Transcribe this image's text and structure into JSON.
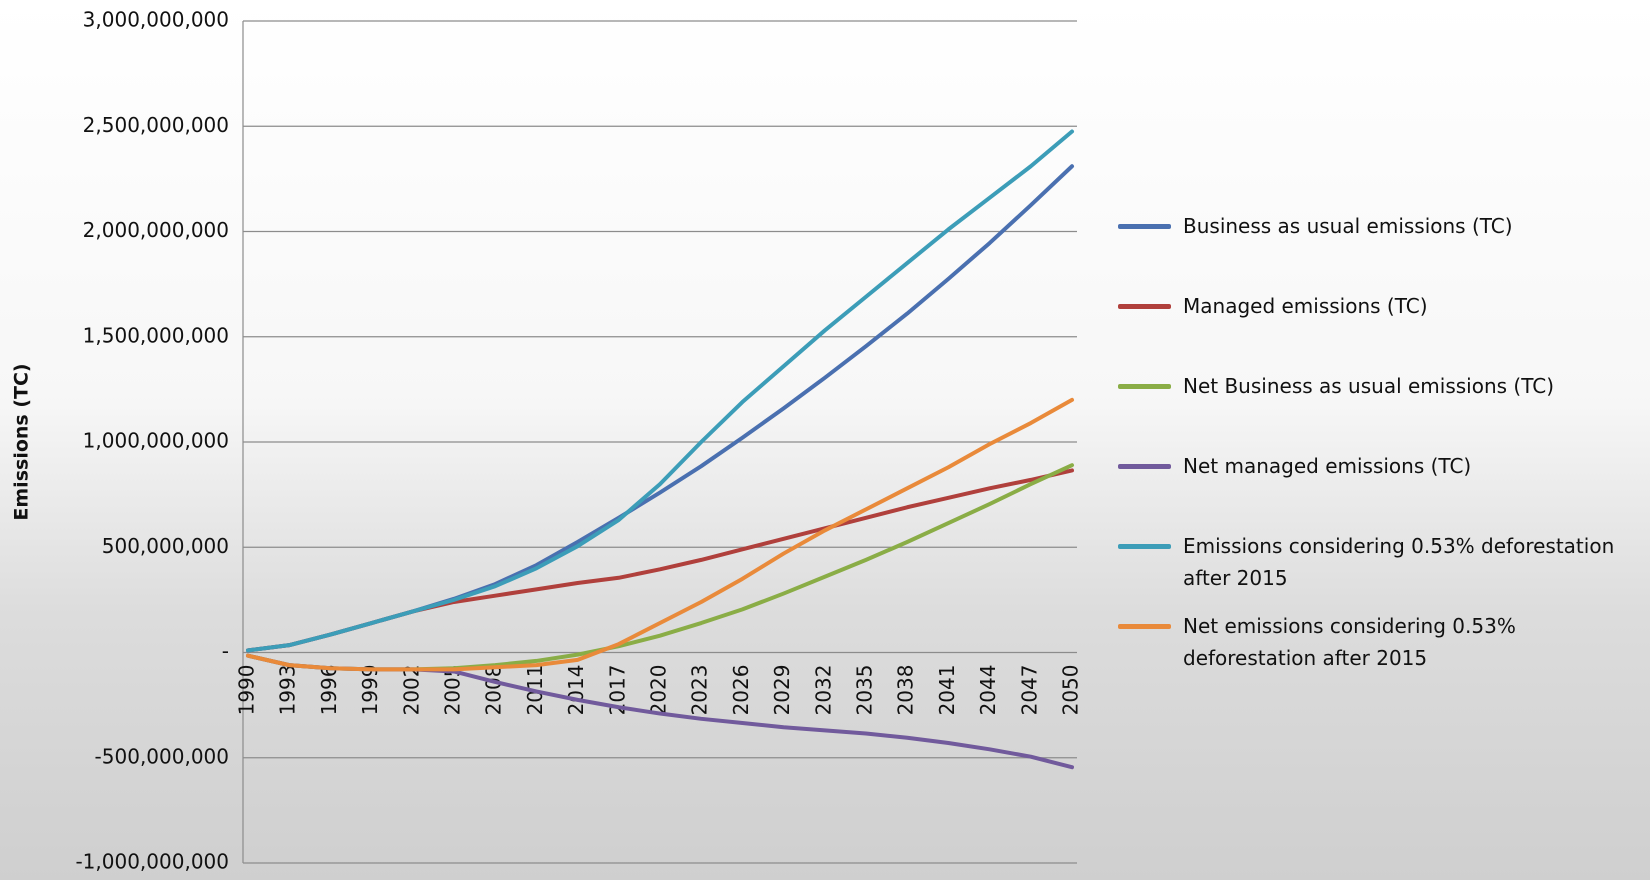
{
  "chart_data": {
    "type": "line",
    "y_label": "Emissions (TC)",
    "x": [
      1990,
      1993,
      1996,
      1999,
      2002,
      2005,
      2008,
      2011,
      2014,
      2017,
      2020,
      2023,
      2026,
      2029,
      2032,
      2035,
      2038,
      2041,
      2044,
      2047,
      2050
    ],
    "xlim": [
      1990,
      2050
    ],
    "ylim": [
      -1000000000,
      3000000000
    ],
    "yticks": [
      {
        "value": -1000000000,
        "label": "-1,000,000,000"
      },
      {
        "value": -500000000,
        "label": "-500,000,000"
      },
      {
        "value": 0,
        "label": "-"
      },
      {
        "value": 500000000,
        "label": "500,000,000"
      },
      {
        "value": 1000000000,
        "label": "1,000,000,000"
      },
      {
        "value": 1500000000,
        "label": "1,500,000,000"
      },
      {
        "value": 2000000000,
        "label": "2,000,000,000"
      },
      {
        "value": 2500000000,
        "label": "2,500,000,000"
      },
      {
        "value": 3000000000,
        "label": "3,000,000,000"
      }
    ],
    "grid": true,
    "legend": "right",
    "series": [
      {
        "name": "Business as usual emissions (TC)",
        "color": "#4a70b0",
        "values": [
          10000000,
          35000000,
          85000000,
          140000000,
          195000000,
          255000000,
          325000000,
          415000000,
          525000000,
          640000000,
          760000000,
          885000000,
          1020000000,
          1160000000,
          1305000000,
          1455000000,
          1610000000,
          1775000000,
          1945000000,
          2125000000,
          2310000000
        ]
      },
      {
        "name": "Managed emissions (TC)",
        "color": "#b0403c",
        "values": [
          10000000,
          35000000,
          85000000,
          140000000,
          195000000,
          240000000,
          270000000,
          300000000,
          330000000,
          355000000,
          395000000,
          440000000,
          490000000,
          540000000,
          590000000,
          640000000,
          690000000,
          735000000,
          780000000,
          820000000,
          865000000
        ]
      },
      {
        "name": "Net Business as usual emissions (TC)",
        "color": "#8aad46",
        "values": [
          -15000000,
          -60000000,
          -75000000,
          -80000000,
          -80000000,
          -75000000,
          -60000000,
          -40000000,
          -10000000,
          30000000,
          80000000,
          140000000,
          205000000,
          280000000,
          360000000,
          440000000,
          525000000,
          615000000,
          705000000,
          800000000,
          890000000
        ]
      },
      {
        "name": "Net managed emissions (TC)",
        "color": "#715a9c",
        "values": [
          -15000000,
          -60000000,
          -75000000,
          -80000000,
          -80000000,
          -90000000,
          -140000000,
          -185000000,
          -225000000,
          -260000000,
          -290000000,
          -315000000,
          -335000000,
          -355000000,
          -370000000,
          -385000000,
          -405000000,
          -430000000,
          -460000000,
          -495000000,
          -545000000
        ]
      },
      {
        "name": "Emissions considering 0.53% deforestation after 2015",
        "color": "#3c9db8",
        "values": [
          10000000,
          35000000,
          85000000,
          140000000,
          195000000,
          250000000,
          315000000,
          400000000,
          505000000,
          630000000,
          800000000,
          1000000000,
          1190000000,
          1360000000,
          1530000000,
          1690000000,
          1850000000,
          2010000000,
          2160000000,
          2310000000,
          2475000000
        ]
      },
      {
        "name": "Net emissions considering 0.53% deforestation after 2015",
        "color": "#e98a3a",
        "values": [
          -15000000,
          -60000000,
          -75000000,
          -80000000,
          -80000000,
          -80000000,
          -70000000,
          -60000000,
          -35000000,
          40000000,
          140000000,
          240000000,
          350000000,
          470000000,
          580000000,
          680000000,
          780000000,
          880000000,
          990000000,
          1090000000,
          1200000000
        ]
      }
    ]
  }
}
